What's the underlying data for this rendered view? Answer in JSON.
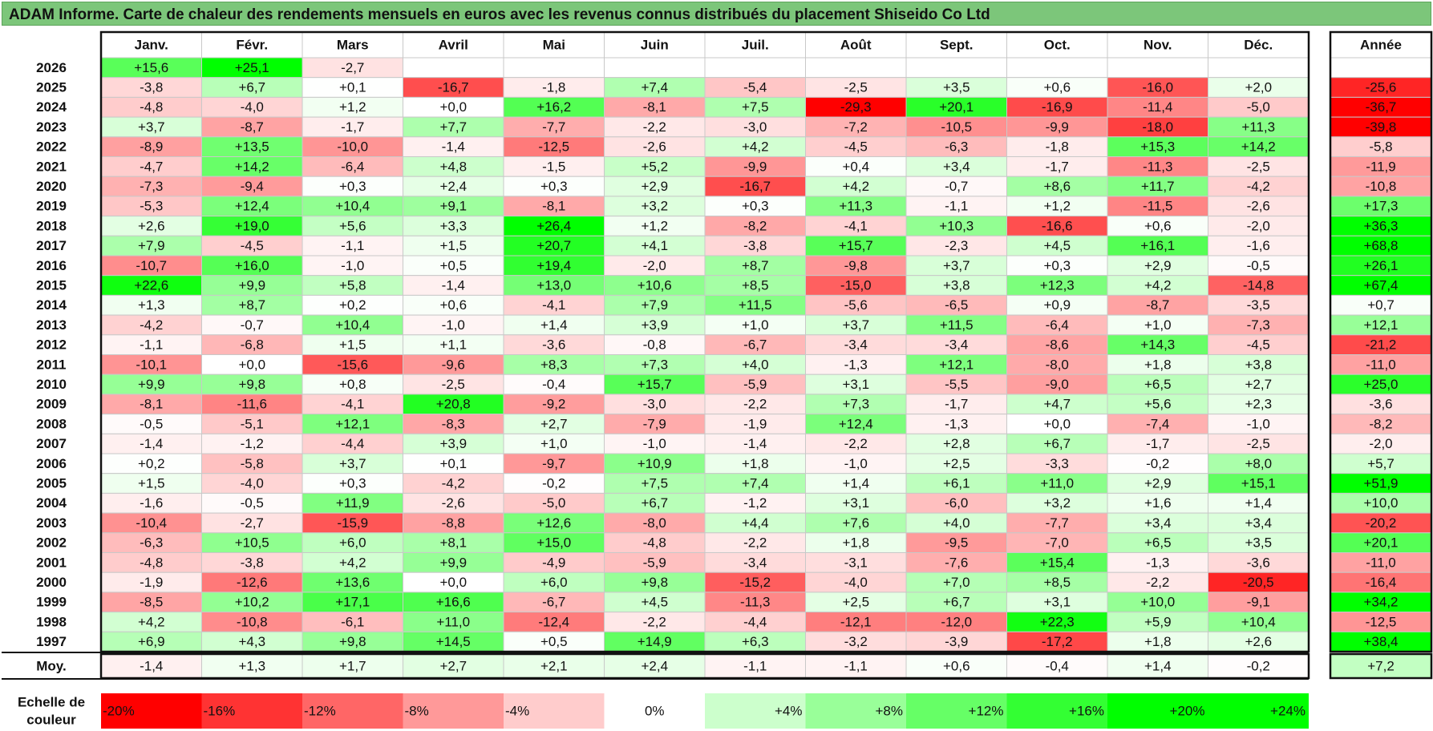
{
  "title": "ADAM Informe. Carte de chaleur des rendements mensuels en euros avec les revenus connus distribués du placement Shiseido Co Ltd",
  "chart_data": {
    "type": "heatmap",
    "title": "ADAM Informe. Carte de chaleur des rendements mensuels en euros avec les revenus connus distribués du placement Shiseido Co Ltd",
    "months": [
      "Janv.",
      "Févr.",
      "Mars",
      "Avril",
      "Mai",
      "Juin",
      "Juil.",
      "Août",
      "Sept.",
      "Oct.",
      "Nov.",
      "Déc."
    ],
    "year_header": "Année",
    "avg_label": "Moy.",
    "rows": [
      {
        "year": "2026",
        "values": [
          "+15,6",
          "+25,1",
          "-2,7",
          "",
          "",
          "",
          "",
          "",
          "",
          "",
          "",
          ""
        ],
        "annual": ""
      },
      {
        "year": "2025",
        "values": [
          "-3,8",
          "+6,7",
          "+0,1",
          "-16,7",
          "-1,8",
          "+7,4",
          "-5,4",
          "-2,5",
          "+3,5",
          "+0,6",
          "-16,0",
          "+2,0"
        ],
        "annual": "-25,6"
      },
      {
        "year": "2024",
        "values": [
          "-4,8",
          "-4,0",
          "+1,2",
          "+0,0",
          "+16,2",
          "-8,1",
          "+7,5",
          "-29,3",
          "+20,1",
          "-16,9",
          "-11,4",
          "-5,0"
        ],
        "annual": "-36,7"
      },
      {
        "year": "2023",
        "values": [
          "+3,7",
          "-8,7",
          "-1,7",
          "+7,7",
          "-7,7",
          "-2,2",
          "-3,0",
          "-7,2",
          "-10,5",
          "-9,9",
          "-18,0",
          "+11,3"
        ],
        "annual": "-39,8"
      },
      {
        "year": "2022",
        "values": [
          "-8,9",
          "+13,5",
          "-10,0",
          "-1,4",
          "-12,5",
          "-2,6",
          "+4,2",
          "-4,5",
          "-6,3",
          "-1,8",
          "+15,3",
          "+14,2"
        ],
        "annual": "-5,8"
      },
      {
        "year": "2021",
        "values": [
          "-4,7",
          "+14,2",
          "-6,4",
          "+4,8",
          "-1,5",
          "+5,2",
          "-9,9",
          "+0,4",
          "+3,4",
          "-1,7",
          "-11,3",
          "-2,5"
        ],
        "annual": "-11,9"
      },
      {
        "year": "2020",
        "values": [
          "-7,3",
          "-9,4",
          "+0,3",
          "+2,4",
          "+0,3",
          "+2,9",
          "-16,7",
          "+4,2",
          "-0,7",
          "+8,6",
          "+11,7",
          "-4,2"
        ],
        "annual": "-10,8"
      },
      {
        "year": "2019",
        "values": [
          "-5,3",
          "+12,4",
          "+10,4",
          "+9,1",
          "-8,1",
          "+3,2",
          "+0,3",
          "+11,3",
          "-1,1",
          "+1,2",
          "-11,5",
          "-2,6"
        ],
        "annual": "+17,3"
      },
      {
        "year": "2018",
        "values": [
          "+2,6",
          "+19,0",
          "+5,6",
          "+3,3",
          "+26,4",
          "+1,2",
          "-8,2",
          "-4,1",
          "+10,3",
          "-16,6",
          "+0,6",
          "-2,0"
        ],
        "annual": "+36,3"
      },
      {
        "year": "2017",
        "values": [
          "+7,9",
          "-4,5",
          "-1,1",
          "+1,5",
          "+20,7",
          "+4,1",
          "-3,8",
          "+15,7",
          "-2,3",
          "+4,5",
          "+16,1",
          "-1,6"
        ],
        "annual": "+68,8"
      },
      {
        "year": "2016",
        "values": [
          "-10,7",
          "+16,0",
          "-1,0",
          "+0,5",
          "+19,4",
          "-2,0",
          "+8,7",
          "-9,8",
          "+3,7",
          "+0,3",
          "+2,9",
          "-0,5"
        ],
        "annual": "+26,1"
      },
      {
        "year": "2015",
        "values": [
          "+22,6",
          "+9,9",
          "+5,8",
          "-1,4",
          "+13,0",
          "+10,6",
          "+8,5",
          "-15,0",
          "+3,8",
          "+12,3",
          "+4,2",
          "-14,8"
        ],
        "annual": "+67,4"
      },
      {
        "year": "2014",
        "values": [
          "+1,3",
          "+8,7",
          "+0,2",
          "+0,6",
          "-4,1",
          "+7,9",
          "+11,5",
          "-5,6",
          "-6,5",
          "+0,9",
          "-8,7",
          "-3,5"
        ],
        "annual": "+0,7"
      },
      {
        "year": "2013",
        "values": [
          "-4,2",
          "-0,7",
          "+10,4",
          "-1,0",
          "+1,4",
          "+3,9",
          "+1,0",
          "+3,7",
          "+11,5",
          "-6,4",
          "+1,0",
          "-7,3"
        ],
        "annual": "+12,1"
      },
      {
        "year": "2012",
        "values": [
          "-1,1",
          "-6,8",
          "+1,5",
          "+1,1",
          "-3,6",
          "-0,8",
          "-6,7",
          "-3,4",
          "-3,4",
          "-8,6",
          "+14,3",
          "-4,5"
        ],
        "annual": "-21,2"
      },
      {
        "year": "2011",
        "values": [
          "-10,1",
          "+0,0",
          "-15,6",
          "-9,6",
          "+8,3",
          "+7,3",
          "+4,0",
          "-1,3",
          "+12,1",
          "-8,0",
          "+1,8",
          "+3,8"
        ],
        "annual": "-11,0"
      },
      {
        "year": "2010",
        "values": [
          "+9,9",
          "+9,8",
          "+0,8",
          "-2,5",
          "-0,4",
          "+15,7",
          "-5,9",
          "+3,1",
          "-5,5",
          "-9,0",
          "+6,5",
          "+2,7"
        ],
        "annual": "+25,0"
      },
      {
        "year": "2009",
        "values": [
          "-8,1",
          "-11,6",
          "-4,1",
          "+20,8",
          "-9,2",
          "-3,0",
          "-2,2",
          "+7,3",
          "-1,7",
          "+4,7",
          "+5,6",
          "+2,3"
        ],
        "annual": "-3,6"
      },
      {
        "year": "2008",
        "values": [
          "-0,5",
          "-5,1",
          "+12,1",
          "-8,3",
          "+2,7",
          "-7,9",
          "-1,9",
          "+12,4",
          "-1,3",
          "+0,0",
          "-7,4",
          "-1,0"
        ],
        "annual": "-8,2"
      },
      {
        "year": "2007",
        "values": [
          "-1,4",
          "-1,2",
          "-4,4",
          "+3,9",
          "+1,0",
          "-1,0",
          "-1,4",
          "-2,2",
          "+2,8",
          "+6,7",
          "-1,7",
          "-2,5"
        ],
        "annual": "-2,0"
      },
      {
        "year": "2006",
        "values": [
          "+0,2",
          "-5,8",
          "+3,7",
          "+0,1",
          "-9,7",
          "+10,9",
          "+1,8",
          "-1,0",
          "+2,5",
          "-3,3",
          "-0,2",
          "+8,0"
        ],
        "annual": "+5,7"
      },
      {
        "year": "2005",
        "values": [
          "+1,5",
          "-4,0",
          "+0,3",
          "-4,2",
          "-0,2",
          "+7,5",
          "+7,4",
          "+1,4",
          "+6,1",
          "+11,0",
          "+2,9",
          "+15,1"
        ],
        "annual": "+51,9"
      },
      {
        "year": "2004",
        "values": [
          "-1,6",
          "-0,5",
          "+11,9",
          "-2,6",
          "-5,0",
          "+6,7",
          "-1,2",
          "+3,1",
          "-6,0",
          "+3,2",
          "+1,6",
          "+1,4"
        ],
        "annual": "+10,0"
      },
      {
        "year": "2003",
        "values": [
          "-10,4",
          "-2,7",
          "-15,9",
          "-8,8",
          "+12,6",
          "-8,0",
          "+4,4",
          "+7,6",
          "+4,0",
          "-7,7",
          "+3,4",
          "+3,4"
        ],
        "annual": "-20,2"
      },
      {
        "year": "2002",
        "values": [
          "-6,3",
          "+10,5",
          "+6,0",
          "+8,1",
          "+15,0",
          "-4,8",
          "-2,2",
          "+1,8",
          "-9,5",
          "-7,0",
          "+6,5",
          "+3,5"
        ],
        "annual": "+20,1"
      },
      {
        "year": "2001",
        "values": [
          "-4,8",
          "-3,8",
          "+4,2",
          "+9,9",
          "-4,9",
          "-5,9",
          "-3,4",
          "-3,1",
          "-7,6",
          "+15,4",
          "-1,3",
          "-3,6"
        ],
        "annual": "-11,0"
      },
      {
        "year": "2000",
        "values": [
          "-1,9",
          "-12,6",
          "+13,6",
          "+0,0",
          "+6,0",
          "+9,8",
          "-15,2",
          "-4,0",
          "+7,0",
          "+8,5",
          "-2,2",
          "-20,5"
        ],
        "annual": "-16,4"
      },
      {
        "year": "1999",
        "values": [
          "-8,5",
          "+10,2",
          "+17,1",
          "+16,6",
          "-6,7",
          "+4,5",
          "-11,3",
          "+2,5",
          "+6,7",
          "+3,1",
          "+10,0",
          "-9,1"
        ],
        "annual": "+34,2"
      },
      {
        "year": "1998",
        "values": [
          "+4,2",
          "-10,8",
          "-6,1",
          "+11,0",
          "-12,4",
          "-2,2",
          "-4,4",
          "-12,1",
          "-12,0",
          "+22,3",
          "+5,9",
          "+10,4"
        ],
        "annual": "-12,5"
      },
      {
        "year": "1997",
        "values": [
          "+6,9",
          "+4,3",
          "+9,8",
          "+14,5",
          "+0,5",
          "+14,9",
          "+6,3",
          "-3,2",
          "-3,9",
          "-17,2",
          "+1,8",
          "+2,6"
        ],
        "annual": "+38,4"
      }
    ],
    "average": {
      "values": [
        "-1,4",
        "+1,3",
        "+1,7",
        "+2,7",
        "+2,1",
        "+2,4",
        "-1,1",
        "-1,1",
        "+0,6",
        "-0,4",
        "+1,4",
        "-0,2"
      ],
      "annual": "+7,2"
    },
    "scale": {
      "label_line1": "Echelle de",
      "label_line2": "couleur",
      "stops": [
        "-20%",
        "-16%",
        "-12%",
        "-8%",
        "-4%",
        "0%",
        "+4%",
        "+8%",
        "+12%",
        "+16%",
        "+20%",
        "+24%"
      ],
      "stop_values": [
        -20,
        -16,
        -12,
        -8,
        -4,
        0,
        4,
        8,
        12,
        16,
        20,
        24
      ]
    },
    "colors": {
      "negative": "#ff0000",
      "neutral": "#ffffff",
      "positive": "#00ff00",
      "title_bg": "#7cc67a"
    }
  }
}
